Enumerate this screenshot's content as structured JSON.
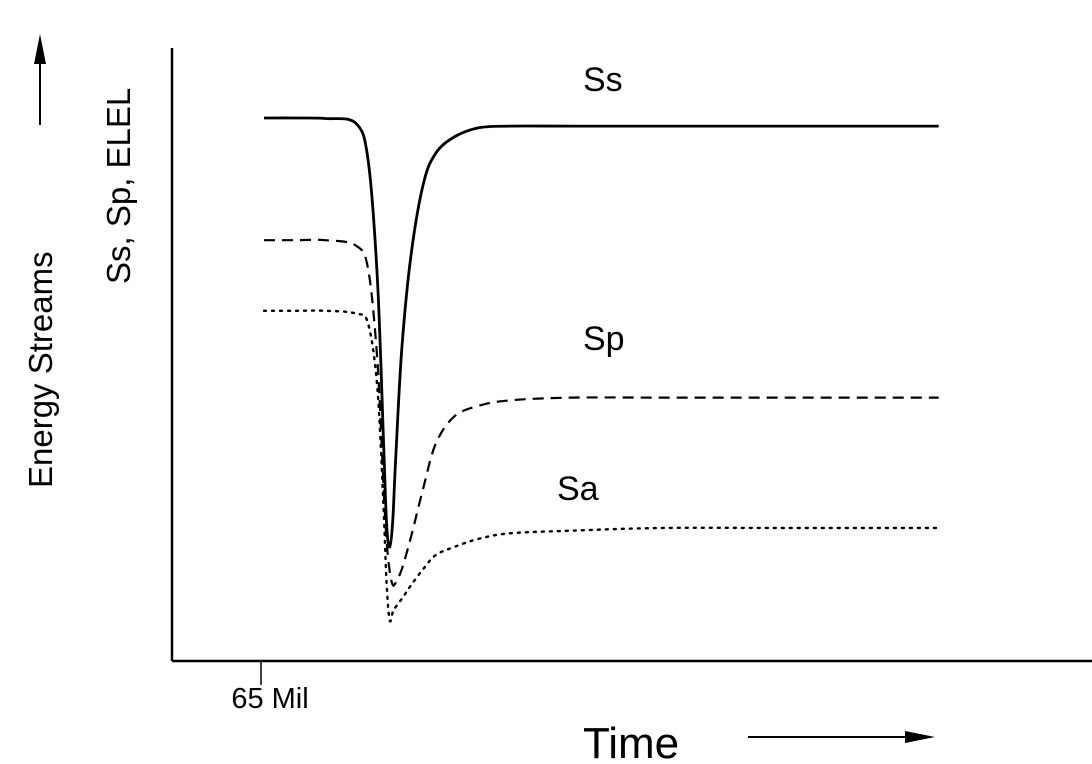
{
  "chart_data": {
    "type": "line",
    "title": "",
    "xlabel": "Time",
    "ylabel": "Energy  Streams",
    "ylabel2": "Ss, Sp, ELEL",
    "tick_label": "65 Mil",
    "x": [
      0,
      10,
      20,
      30,
      34,
      37,
      39,
      40,
      41,
      42,
      43,
      45,
      48,
      52,
      56,
      62,
      70,
      80,
      100,
      130,
      170,
      220
    ],
    "xlim": [
      -30,
      270
    ],
    "ylim": [
      0,
      100
    ],
    "grid": false,
    "legend": "none (series labeled inline)",
    "series": [
      {
        "name": "Ss",
        "style": "solid",
        "values": [
          100,
          100,
          99.9,
          99,
          92,
          70,
          40,
          25,
          21,
          26,
          38,
          58,
          75,
          88,
          93.5,
          96.5,
          98.2,
          98.5,
          98.5,
          98.5,
          98.5,
          98.5
        ]
      },
      {
        "name": "Sp",
        "style": "dashed",
        "values": [
          77.5,
          77.5,
          77.5,
          76.5,
          72,
          55,
          32,
          22,
          16.5,
          14,
          14.5,
          17,
          23,
          32,
          40,
          45,
          47,
          48,
          48.5,
          48.5,
          48.5,
          48.5
        ]
      },
      {
        "name": "Sa",
        "style": "dotted",
        "values": [
          64.5,
          64.5,
          64.5,
          64,
          62,
          50,
          28,
          14,
          7.5,
          9,
          10,
          11.5,
          14,
          17,
          19.5,
          21,
          22.5,
          23.5,
          24,
          24.5,
          24.5,
          24.5
        ]
      }
    ],
    "event_marker_x": 30,
    "arrow_on_axes": true,
    "line_color": "#000000"
  }
}
